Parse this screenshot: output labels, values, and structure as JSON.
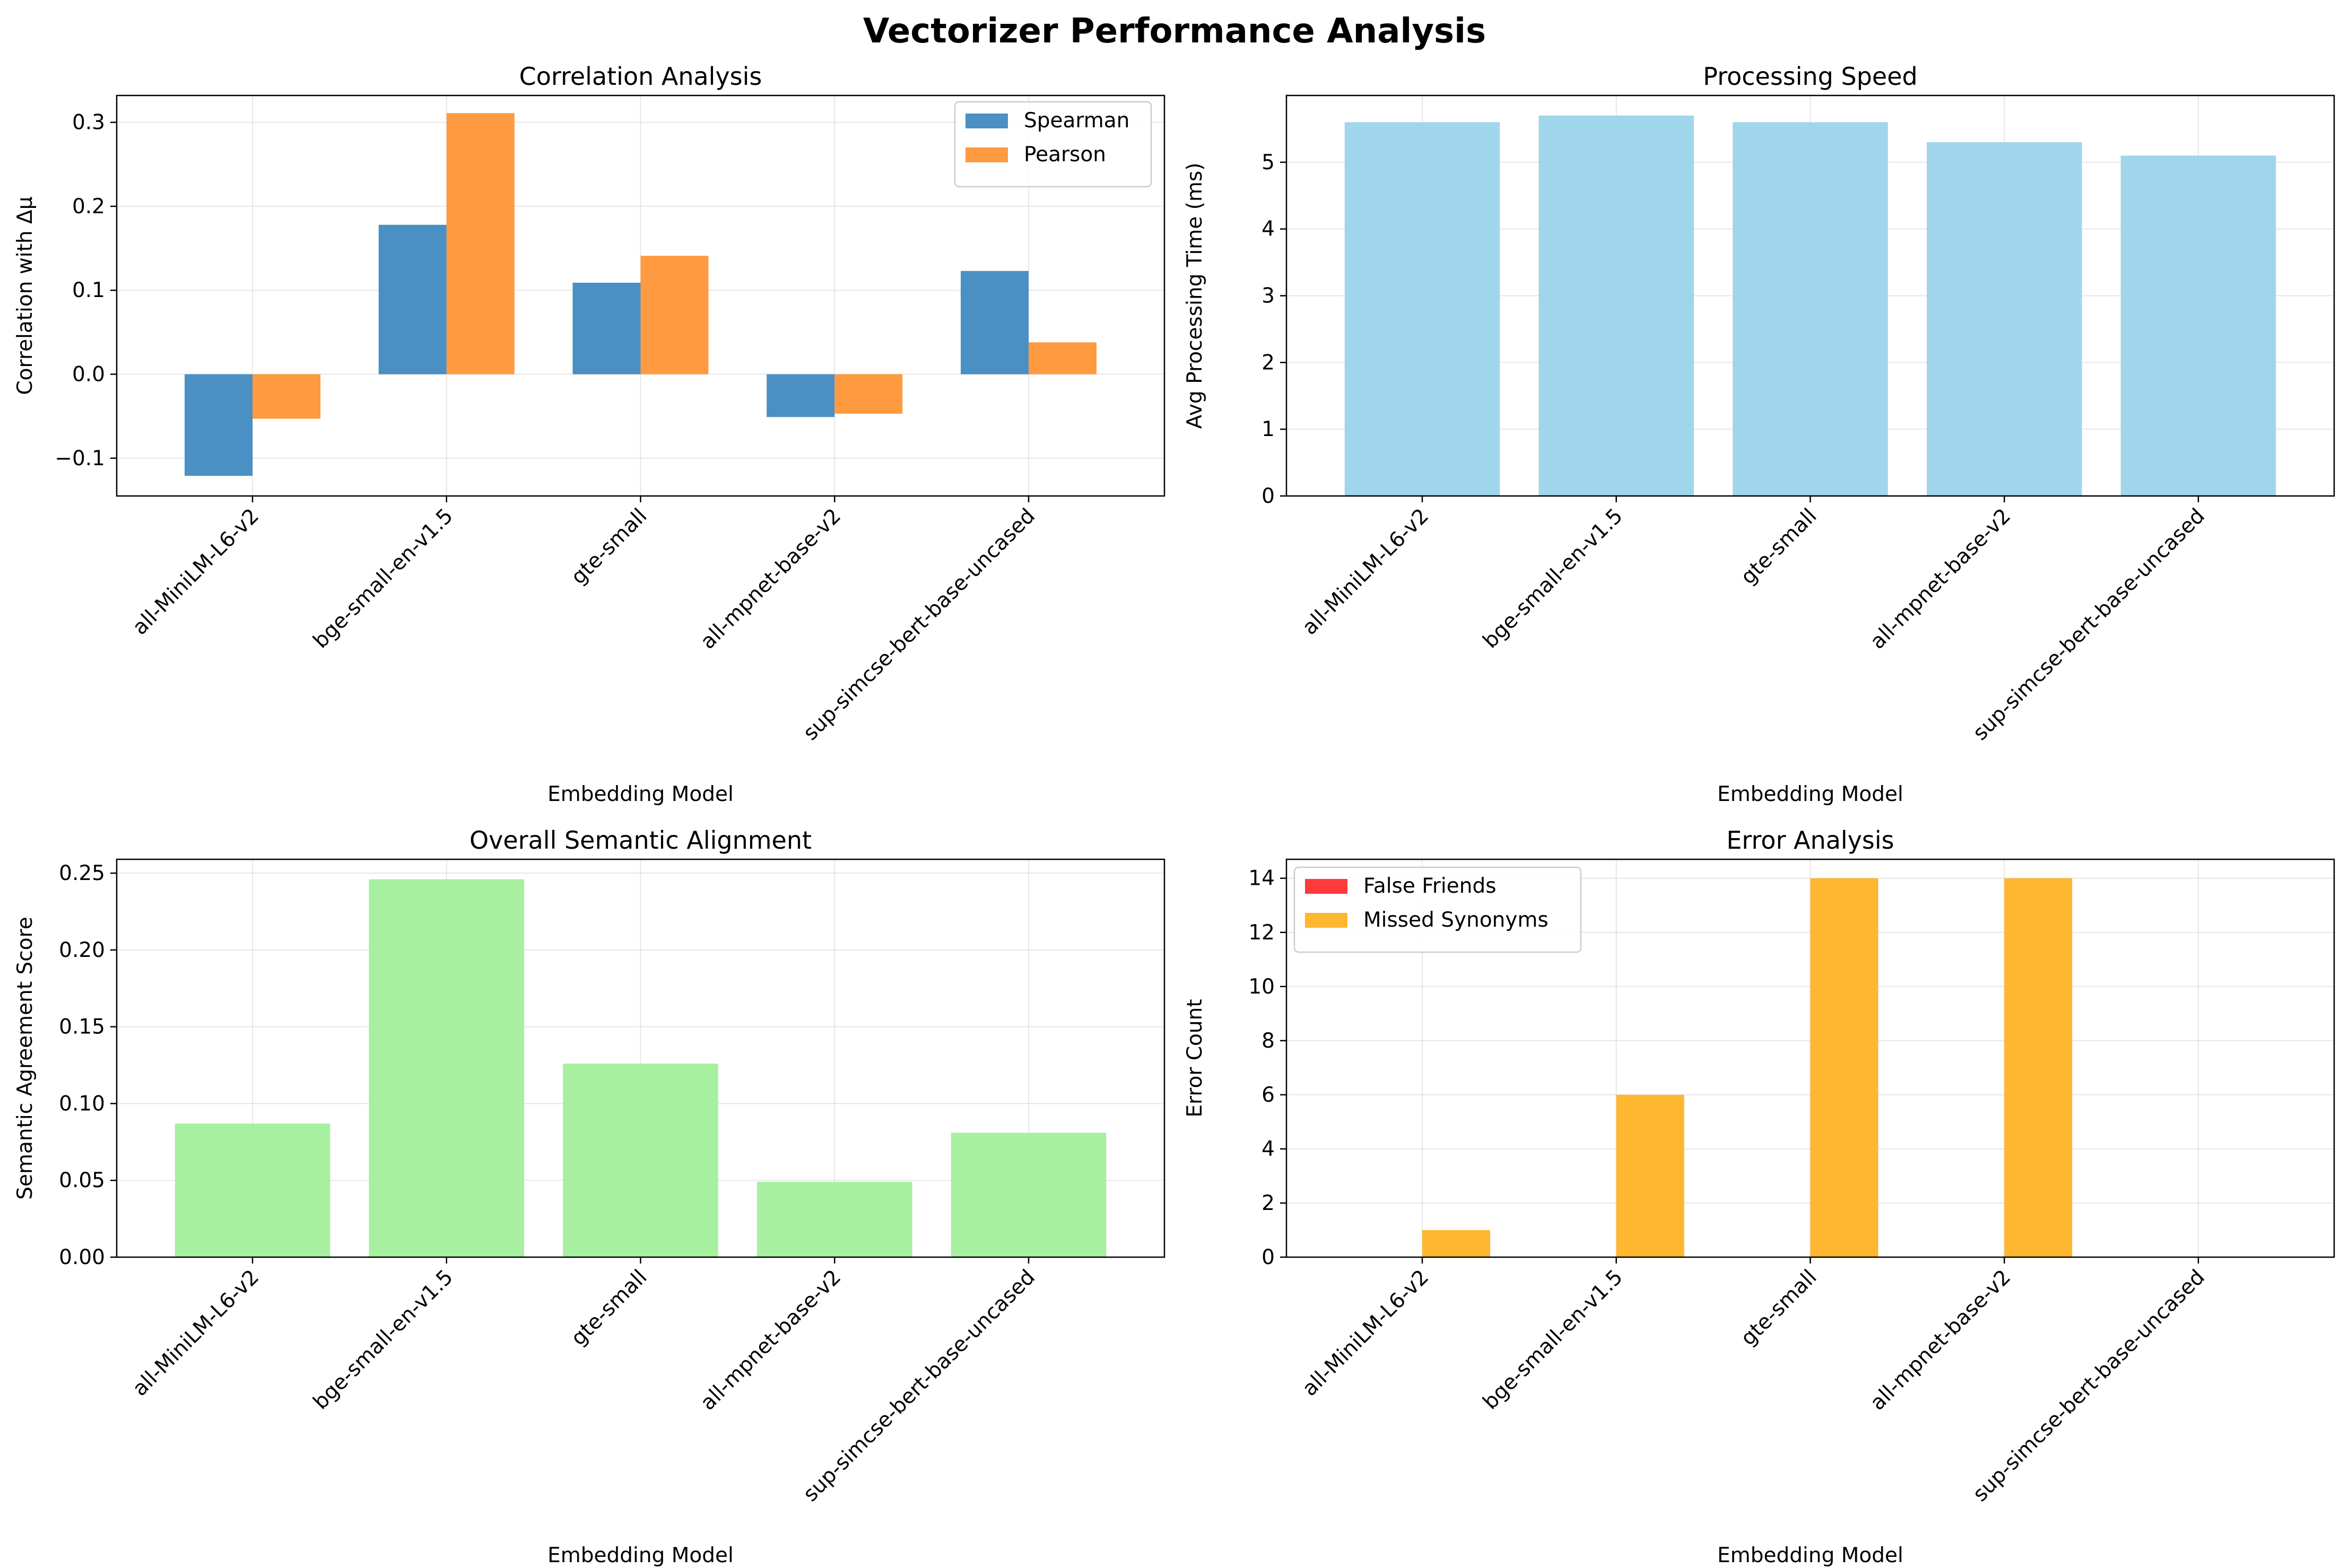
{
  "figure_title": "Vectorizer Performance Analysis",
  "chart_data": [
    {
      "id": "correlation",
      "type": "bar",
      "title": "Correlation Analysis",
      "xlabel": "Embedding Model",
      "ylabel": "Correlation with Δμ",
      "categories": [
        "all-MiniLM-L6-v2",
        "bge-small-en-v1.5",
        "gte-small",
        "all-mpnet-base-v2",
        "sup-simcse-bert-base-uncased"
      ],
      "series": [
        {
          "name": "Spearman",
          "color": "#4a90c4",
          "values": [
            -0.121,
            0.178,
            0.109,
            -0.051,
            0.123
          ]
        },
        {
          "name": "Pearson",
          "color": "#ff9a40",
          "values": [
            -0.053,
            0.311,
            0.141,
            -0.047,
            0.038
          ]
        }
      ],
      "ylim": [
        -0.145,
        0.332
      ],
      "yticks": [
        -0.1,
        0.0,
        0.1,
        0.2,
        0.3
      ],
      "ytick_labels": [
        "−0.1",
        "0.0",
        "0.1",
        "0.2",
        "0.3"
      ],
      "grid": true,
      "legend": "top-right"
    },
    {
      "id": "speed",
      "type": "bar",
      "title": "Processing Speed",
      "xlabel": "Embedding Model",
      "ylabel": "Avg Processing Time (ms)",
      "categories": [
        "all-MiniLM-L6-v2",
        "bge-small-en-v1.5",
        "gte-small",
        "all-mpnet-base-v2",
        "sup-simcse-bert-base-uncased"
      ],
      "series": [
        {
          "color": "#a0d6ec",
          "values": [
            5.6,
            5.7,
            5.6,
            5.3,
            5.1
          ]
        }
      ],
      "ylim": [
        0,
        6.0
      ],
      "yticks": [
        0,
        1,
        2,
        3,
        4,
        5
      ],
      "ytick_labels": [
        "0",
        "1",
        "2",
        "3",
        "4",
        "5"
      ],
      "grid": true
    },
    {
      "id": "alignment",
      "type": "bar",
      "title": "Overall Semantic Alignment",
      "xlabel": "Embedding Model",
      "ylabel": "Semantic Agreement Score",
      "categories": [
        "all-MiniLM-L6-v2",
        "bge-small-en-v1.5",
        "gte-small",
        "all-mpnet-base-v2",
        "sup-simcse-bert-base-uncased"
      ],
      "series": [
        {
          "color": "#a6f0a0",
          "values": [
            0.087,
            0.246,
            0.126,
            0.049,
            0.081
          ]
        }
      ],
      "ylim": [
        0,
        0.259
      ],
      "yticks": [
        0.0,
        0.05,
        0.1,
        0.15,
        0.2,
        0.25
      ],
      "ytick_labels": [
        "0.00",
        "0.05",
        "0.10",
        "0.15",
        "0.20",
        "0.25"
      ],
      "grid": true
    },
    {
      "id": "errors",
      "type": "bar",
      "title": "Error Analysis",
      "xlabel": "Embedding Model",
      "ylabel": "Error Count",
      "categories": [
        "all-MiniLM-L6-v2",
        "bge-small-en-v1.5",
        "gte-small",
        "all-mpnet-base-v2",
        "sup-simcse-bert-base-uncased"
      ],
      "series": [
        {
          "name": "False Friends",
          "color": "#ff3a3a",
          "values": [
            0,
            0,
            0,
            0,
            0
          ]
        },
        {
          "name": "Missed Synonyms",
          "color": "#ffb630",
          "values": [
            1,
            6,
            14,
            14,
            0
          ]
        }
      ],
      "ylim": [
        0,
        14.7
      ],
      "yticks": [
        0,
        2,
        4,
        6,
        8,
        10,
        12,
        14
      ],
      "ytick_labels": [
        "0",
        "2",
        "4",
        "6",
        "8",
        "10",
        "12",
        "14"
      ],
      "grid": true,
      "legend": "top-left"
    }
  ]
}
